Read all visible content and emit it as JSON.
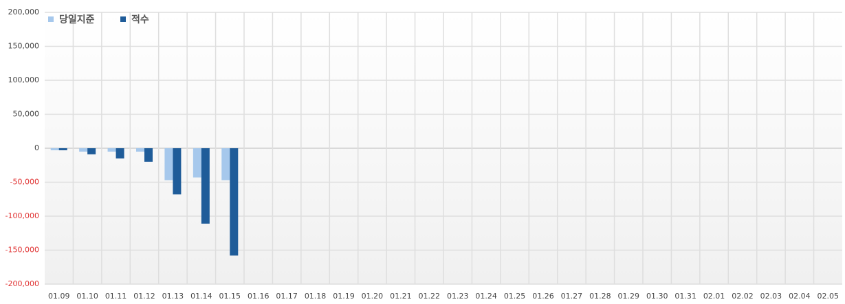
{
  "chart_data": {
    "type": "bar",
    "categories": [
      "01.09",
      "01.10",
      "01.11",
      "01.12",
      "01.13",
      "01.14",
      "01.15",
      "01.16",
      "01.17",
      "01.18",
      "01.19",
      "01.20",
      "01.21",
      "01.22",
      "01.23",
      "01.24",
      "01.25",
      "01.26",
      "01.27",
      "01.28",
      "01.29",
      "01.30",
      "01.31",
      "02.01",
      "02.02",
      "02.03",
      "02.04",
      "02.05"
    ],
    "series": [
      {
        "name": "당일지준",
        "color": "#a6c8ec",
        "values": [
          -3000,
          -5000,
          -5000,
          -5000,
          -47000,
          -43000,
          -47000,
          null,
          null,
          null,
          null,
          null,
          null,
          null,
          null,
          null,
          null,
          null,
          null,
          null,
          null,
          null,
          null,
          null,
          null,
          null,
          null,
          null
        ]
      },
      {
        "name": "적수",
        "color": "#1f5c99",
        "values": [
          -3000,
          -9000,
          -15000,
          -20000,
          -68000,
          -111000,
          -158000,
          null,
          null,
          null,
          null,
          null,
          null,
          null,
          null,
          null,
          null,
          null,
          null,
          null,
          null,
          null,
          null,
          null,
          null,
          null,
          null,
          null
        ]
      }
    ],
    "ylim": [
      -200000,
      200000
    ],
    "yticks": [
      {
        "value": -200000,
        "label": "-200,000"
      },
      {
        "value": -150000,
        "label": "-150,000"
      },
      {
        "value": -100000,
        "label": "-100,000"
      },
      {
        "value": -50000,
        "label": "-50,000"
      },
      0,
      {
        "value": 50000,
        "label": "50,000"
      },
      {
        "value": 100000,
        "label": "100,000"
      },
      {
        "value": 150000,
        "label": "150,000"
      },
      {
        "value": 200000,
        "label": "200,000"
      }
    ],
    "negative_tick_color": "#e03030",
    "grid": true,
    "legend": "top-left"
  }
}
